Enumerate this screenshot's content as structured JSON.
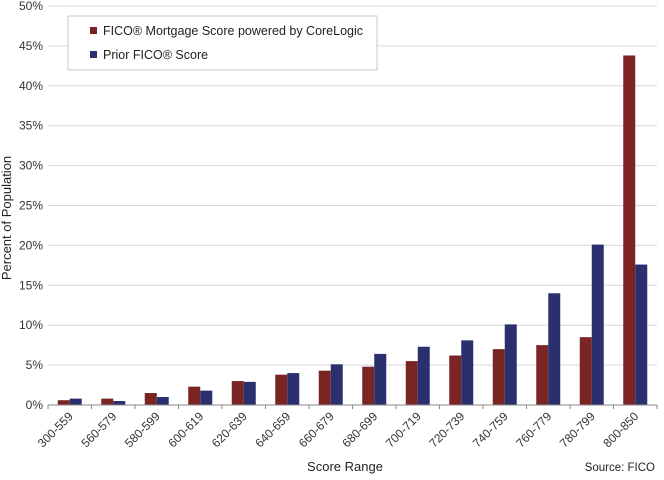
{
  "chart_data": {
    "type": "bar",
    "title": "",
    "xlabel": "Score Range",
    "ylabel": "Percent of Population",
    "source": "Source: FICO",
    "ylim": [
      0,
      50
    ],
    "yticks": [
      "0%",
      "5%",
      "10%",
      "15%",
      "20%",
      "25%",
      "30%",
      "35%",
      "40%",
      "45%",
      "50%"
    ],
    "grid": "horizontal",
    "legend_placement": "top-left",
    "categories": [
      "300-559",
      "560-579",
      "580-599",
      "600-619",
      "620-639",
      "640-659",
      "660-679",
      "680-699",
      "700-719",
      "720-739",
      "740-759",
      "760-779",
      "780-799",
      "800-850"
    ],
    "series": [
      {
        "name": "FICO® Mortgage Score powered by CoreLogic",
        "color": "#7a2424",
        "values": [
          0.6,
          0.8,
          1.5,
          2.3,
          3.0,
          3.8,
          4.3,
          4.8,
          5.5,
          6.2,
          7.0,
          7.5,
          8.5,
          43.8
        ]
      },
      {
        "name": "Prior FICO® Score",
        "color": "#2a2f6e",
        "values": [
          0.8,
          0.5,
          1.0,
          1.8,
          2.9,
          4.0,
          5.1,
          6.4,
          7.3,
          8.1,
          10.1,
          14.0,
          20.1,
          17.6
        ]
      }
    ]
  }
}
